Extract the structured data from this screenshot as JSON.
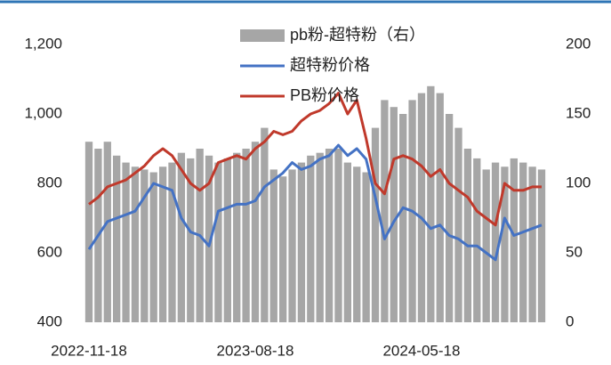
{
  "chart_data": {
    "type": "bar-line",
    "categories": [
      "2022-11-18",
      null,
      null,
      null,
      null,
      null,
      null,
      null,
      null,
      null,
      null,
      null,
      null,
      null,
      null,
      null,
      null,
      null,
      "2023-08-18",
      null,
      null,
      null,
      null,
      null,
      null,
      null,
      null,
      null,
      null,
      null,
      null,
      null,
      null,
      null,
      null,
      null,
      "2024-05-18",
      null,
      null,
      null,
      null,
      null,
      null,
      null,
      null,
      null,
      null,
      null,
      null,
      null
    ],
    "series": [
      {
        "name": "pb粉-超特粉（右）",
        "type": "bar",
        "axis": "y2",
        "color": "#a6a6a6",
        "values": [
          130,
          125,
          130,
          120,
          115,
          112,
          110,
          108,
          112,
          115,
          122,
          118,
          125,
          120,
          115,
          118,
          122,
          125,
          130,
          140,
          110,
          105,
          110,
          115,
          120,
          122,
          125,
          125,
          115,
          112,
          108,
          140,
          160,
          155,
          150,
          160,
          165,
          170,
          165,
          150,
          140,
          125,
          118,
          110,
          115,
          112,
          118,
          115,
          112,
          110
        ]
      },
      {
        "name": "超特粉价格",
        "type": "line",
        "color": "#4472c4",
        "values": [
          610,
          650,
          690,
          700,
          710,
          720,
          760,
          800,
          790,
          780,
          700,
          660,
          650,
          620,
          720,
          730,
          740,
          740,
          750,
          790,
          810,
          830,
          860,
          840,
          850,
          870,
          880,
          910,
          880,
          900,
          870,
          760,
          640,
          690,
          730,
          720,
          700,
          670,
          680,
          650,
          640,
          620,
          620,
          600,
          580,
          700,
          650,
          660,
          670,
          680
        ]
      },
      {
        "name": "PB粉价格",
        "type": "line",
        "color": "#c0392b",
        "values": [
          740,
          760,
          790,
          800,
          810,
          830,
          850,
          880,
          900,
          880,
          840,
          800,
          780,
          800,
          860,
          870,
          880,
          870,
          900,
          920,
          950,
          940,
          950,
          980,
          1000,
          1010,
          1030,
          1060,
          1000,
          1040,
          930,
          800,
          770,
          870,
          880,
          870,
          850,
          820,
          840,
          800,
          780,
          760,
          720,
          700,
          680,
          800,
          780,
          780,
          790,
          790
        ]
      }
    ],
    "ylim": [
      400,
      1200
    ],
    "yticks": [
      400,
      600,
      800,
      {
        "value": 1000,
        "label": "1,000"
      },
      {
        "value": 1200,
        "label": "1,200"
      }
    ],
    "y2lim": [
      0,
      200
    ],
    "y2ticks": [
      0,
      50,
      100,
      150,
      200
    ]
  }
}
